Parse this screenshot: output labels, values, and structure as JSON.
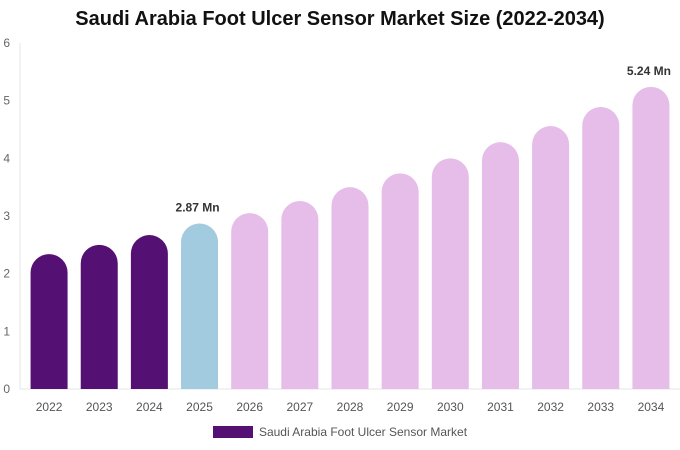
{
  "chart_data": {
    "type": "bar",
    "title": "Saudi Arabia Foot Ulcer Sensor Market Size (2022-2034)",
    "categories": [
      "2022",
      "2023",
      "2024",
      "2025",
      "2026",
      "2027",
      "2028",
      "2029",
      "2030",
      "2031",
      "2032",
      "2033",
      "2034"
    ],
    "series": [
      {
        "name": "Saudi Arabia Foot Ulcer Sensor Market",
        "values": [
          2.34,
          2.5,
          2.67,
          2.87,
          3.05,
          3.26,
          3.5,
          3.74,
          4.0,
          4.28,
          4.56,
          4.89,
          5.24
        ]
      }
    ],
    "data_labels": {
      "3": "2.87 Mn",
      "12": "5.24 Mn"
    },
    "ylim": [
      0,
      6
    ],
    "yticks": [
      "0",
      "1",
      "2",
      "3",
      "4",
      "5",
      "6"
    ],
    "grid": false,
    "legend_position": "bottom",
    "colors": {
      "historical": "#541173",
      "current": "#a3cbe0",
      "forecast": "#e6bde8"
    }
  }
}
